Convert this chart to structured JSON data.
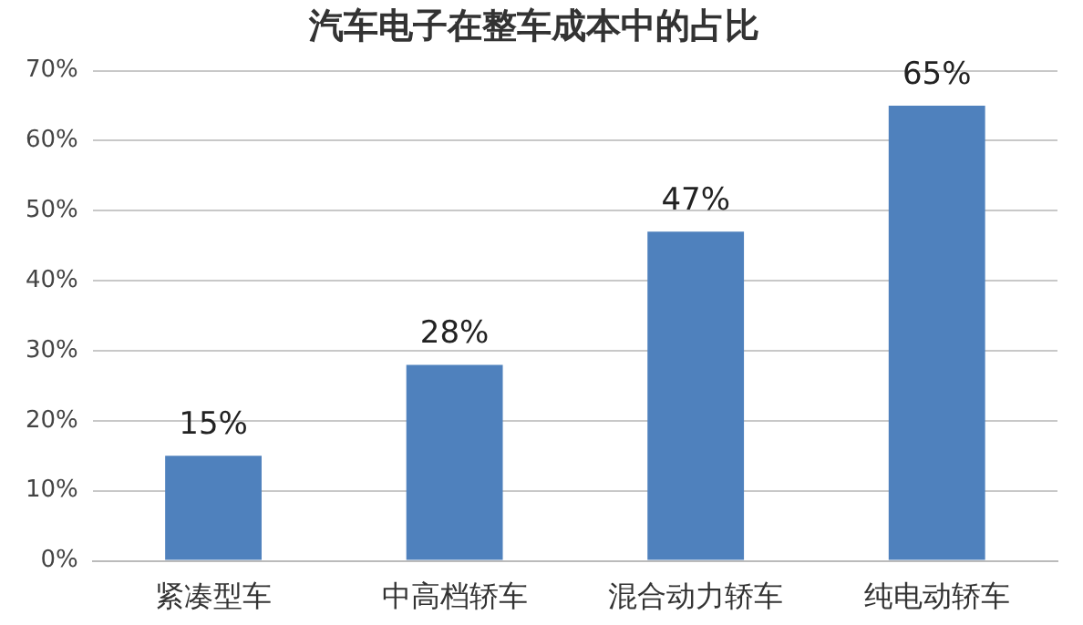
{
  "chart_data": {
    "type": "bar",
    "title": "汽车电子在整车成本中的占比",
    "categories": [
      "紧凑型车",
      "中高档轿车",
      "混合动力轿车",
      "纯电动轿车"
    ],
    "values": [
      15,
      28,
      47,
      65
    ],
    "color": "#4f81bd",
    "value_labels": [
      "15%",
      "28%",
      "47%",
      "65%"
    ],
    "ylim": [
      0,
      70
    ],
    "yticks": [
      {
        "value": 0,
        "label": "0%"
      },
      {
        "value": 10,
        "label": "10%"
      },
      {
        "value": 20,
        "label": "20%"
      },
      {
        "value": 30,
        "label": "30%"
      },
      {
        "value": 40,
        "label": "40%"
      },
      {
        "value": 50,
        "label": "50%"
      },
      {
        "value": 60,
        "label": "60%"
      },
      {
        "value": 70,
        "label": "70%"
      }
    ],
    "grid": "y",
    "legend": false
  }
}
